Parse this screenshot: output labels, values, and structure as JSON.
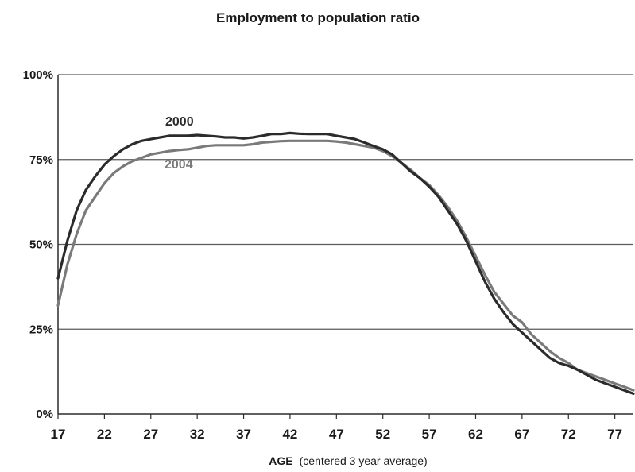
{
  "chart_data": {
    "type": "line",
    "title": "Employment to population ratio",
    "xlabel_main": "AGE",
    "xlabel_sub": "(centered 3 year average)",
    "ylabel": "",
    "xlim": [
      17,
      79
    ],
    "ylim": [
      0,
      100
    ],
    "y_ticks": [
      0,
      25,
      50,
      75,
      100
    ],
    "y_tick_labels": [
      "0%",
      "25%",
      "50%",
      "75%",
      "100%"
    ],
    "x_ticks": [
      17,
      22,
      27,
      32,
      37,
      42,
      47,
      52,
      57,
      62,
      67,
      72,
      77
    ],
    "x_tick_labels": [
      "17",
      "22",
      "27",
      "32",
      "37",
      "42",
      "47",
      "52",
      "57",
      "62",
      "67",
      "72",
      "77"
    ],
    "grid": "horizontal",
    "series": [
      {
        "name": "2000",
        "color": "#2b2b2b",
        "x": [
          17,
          18,
          19,
          20,
          21,
          22,
          23,
          24,
          25,
          26,
          27,
          28,
          29,
          30,
          31,
          32,
          33,
          34,
          35,
          36,
          37,
          38,
          39,
          40,
          41,
          42,
          43,
          44,
          45,
          46,
          47,
          48,
          49,
          50,
          51,
          52,
          53,
          54,
          55,
          56,
          57,
          58,
          59,
          60,
          61,
          62,
          63,
          64,
          65,
          66,
          67,
          68,
          69,
          70,
          71,
          72,
          73,
          74,
          75,
          76,
          77,
          78,
          79
        ],
        "values": [
          40,
          51,
          60,
          66,
          70,
          73.5,
          76,
          78,
          79.5,
          80.5,
          81,
          81.5,
          82,
          82,
          82,
          82.2,
          82,
          81.8,
          81.5,
          81.5,
          81.2,
          81.5,
          82,
          82.5,
          82.5,
          82.8,
          82.6,
          82.5,
          82.5,
          82.5,
          82,
          81.5,
          81,
          80,
          79,
          78,
          76.5,
          74,
          71.5,
          69.5,
          67,
          64,
          60,
          56,
          51,
          45,
          39,
          34,
          30,
          26.5,
          24,
          21.5,
          19,
          16.5,
          15,
          14.2,
          13,
          11.5,
          10,
          9,
          8,
          7,
          6
        ]
      },
      {
        "name": "2004",
        "color": "#7a7a7a",
        "x": [
          17,
          18,
          19,
          20,
          21,
          22,
          23,
          24,
          25,
          26,
          27,
          28,
          29,
          30,
          31,
          32,
          33,
          34,
          35,
          36,
          37,
          38,
          39,
          40,
          41,
          42,
          43,
          44,
          45,
          46,
          47,
          48,
          49,
          50,
          51,
          52,
          53,
          54,
          55,
          56,
          57,
          58,
          59,
          60,
          61,
          62,
          63,
          64,
          65,
          66,
          67,
          68,
          69,
          70,
          71,
          72,
          73,
          74,
          75,
          76,
          77,
          78,
          79
        ],
        "values": [
          32,
          44,
          53,
          60,
          64,
          68,
          71,
          73,
          74.5,
          75.5,
          76.5,
          77,
          77.5,
          77.8,
          78,
          78.5,
          79,
          79.2,
          79.2,
          79.2,
          79.2,
          79.5,
          80,
          80.2,
          80.4,
          80.5,
          80.5,
          80.5,
          80.5,
          80.5,
          80.3,
          80,
          79.5,
          79,
          78.5,
          77.5,
          76,
          74,
          72,
          69.5,
          67.5,
          64.5,
          61,
          57,
          52,
          46.5,
          41,
          36,
          32.5,
          29,
          27,
          23.5,
          21,
          18.5,
          16.5,
          15,
          13,
          12,
          11,
          10,
          9,
          8,
          7
        ]
      }
    ],
    "annotations": [
      {
        "text": "2000",
        "series": "2000"
      },
      {
        "text": "2004",
        "series": "2004"
      }
    ]
  }
}
